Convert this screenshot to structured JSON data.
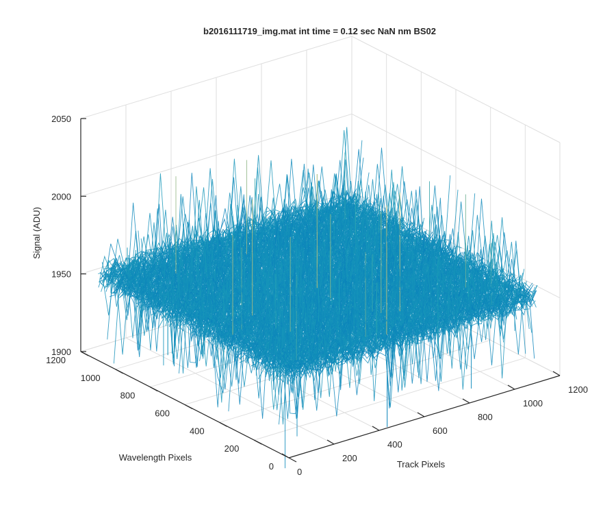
{
  "chart_data": {
    "type": "surface",
    "title": "b2016111719_img.mat int time = 0.12 sec  NaN nm BS02",
    "xlabel": "Track Pixels",
    "ylabel": "Wavelength Pixels",
    "zlabel": "Signal (ADU)",
    "xlim": [
      0,
      1200
    ],
    "ylim": [
      0,
      1200
    ],
    "zlim": [
      1900,
      2050
    ],
    "xticks": [
      0,
      200,
      400,
      600,
      800,
      1000,
      1200
    ],
    "yticks": [
      0,
      200,
      400,
      600,
      800,
      1000,
      1200
    ],
    "zticks": [
      1900,
      1950,
      2000,
      2050
    ],
    "xtick_labels": [
      "0",
      "200",
      "400",
      "600",
      "800",
      "1000",
      "1200"
    ],
    "ytick_labels": [
      "0",
      "200",
      "400",
      "600",
      "800",
      "1000",
      "1200"
    ],
    "ztick_labels": [
      "1900",
      "1950",
      "2000",
      "2050"
    ],
    "grid": true,
    "surface": {
      "x_extent": [
        0,
        1100
      ],
      "y_extent": [
        0,
        1100
      ],
      "mean_signal": 1955,
      "noise_min": 1915,
      "noise_max": 2045,
      "colormap": "parula",
      "color_low": "#0072BD",
      "color_mid": "#1FA2B8",
      "color_high": "#E8C96A"
    }
  }
}
